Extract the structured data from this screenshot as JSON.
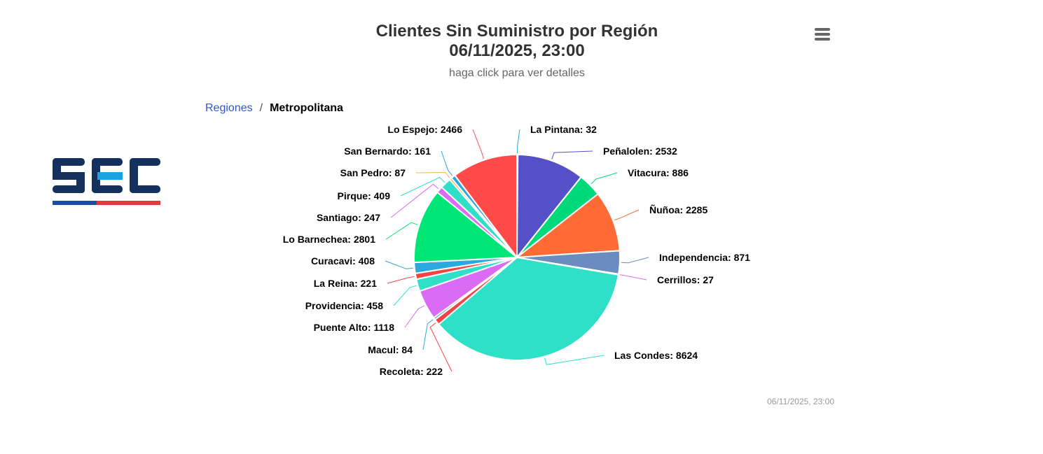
{
  "header": {
    "title_line1": "Clientes Sin Suministro por Región",
    "title_line2": "06/11/2025, 23:00",
    "subtitle": "haga click para ver detalles",
    "menu_icon": "hamburger-menu-icon"
  },
  "breadcrumb": {
    "parent": "Regiones",
    "separator": "/",
    "current": "Metropolitana"
  },
  "logo": {
    "text": "SEC",
    "colors": {
      "navy": "#14305c",
      "cyan": "#1aa3e0",
      "blue": "#1a4fa8",
      "red": "#e23a3a"
    }
  },
  "footer": {
    "timestamp": "06/11/2025, 23:00"
  },
  "chart_data": {
    "type": "pie",
    "title": "Clientes Sin Suministro por Región 06/11/2025, 23:00",
    "subtitle": "haga click para ver detalles",
    "slices": [
      {
        "name": "La Pintana",
        "value": 32,
        "color": "#2aa8e0"
      },
      {
        "name": "Peñalolen",
        "value": 2532,
        "color": "#5550c8"
      },
      {
        "name": "Vitacura",
        "value": 886,
        "color": "#00d97a"
      },
      {
        "name": "Ñuñoa",
        "value": 2285,
        "color": "#ff6b35"
      },
      {
        "name": "Independencia",
        "value": 871,
        "color": "#6b8cbe"
      },
      {
        "name": "Cerrillos",
        "value": 27,
        "color": "#d96bf5"
      },
      {
        "name": "Las Condes",
        "value": 8624,
        "color": "#2ee0c8"
      },
      {
        "name": "Recoleta",
        "value": 222,
        "color": "#f24444"
      },
      {
        "name": "Macul",
        "value": 84,
        "color": "#2aa8e0"
      },
      {
        "name": "Puente Alto",
        "value": 1118,
        "color": "#d96bf5"
      },
      {
        "name": "Providencia",
        "value": 458,
        "color": "#2ee0c8"
      },
      {
        "name": "La Reina",
        "value": 221,
        "color": "#f24444"
      },
      {
        "name": "Curacavi",
        "value": 408,
        "color": "#2aa8e0"
      },
      {
        "name": "Lo Barnechea",
        "value": 2801,
        "color": "#00e676"
      },
      {
        "name": "Santiago",
        "value": 247,
        "color": "#d96bf5"
      },
      {
        "name": "Pirque",
        "value": 409,
        "color": "#2ee0c8"
      },
      {
        "name": "San Pedro",
        "value": 87,
        "color": "#ffb74d"
      },
      {
        "name": "San Bernardo",
        "value": 161,
        "color": "#2aa8e0"
      },
      {
        "name": "Lo Espejo",
        "value": 2466,
        "color": "#ff4a4a"
      }
    ]
  }
}
